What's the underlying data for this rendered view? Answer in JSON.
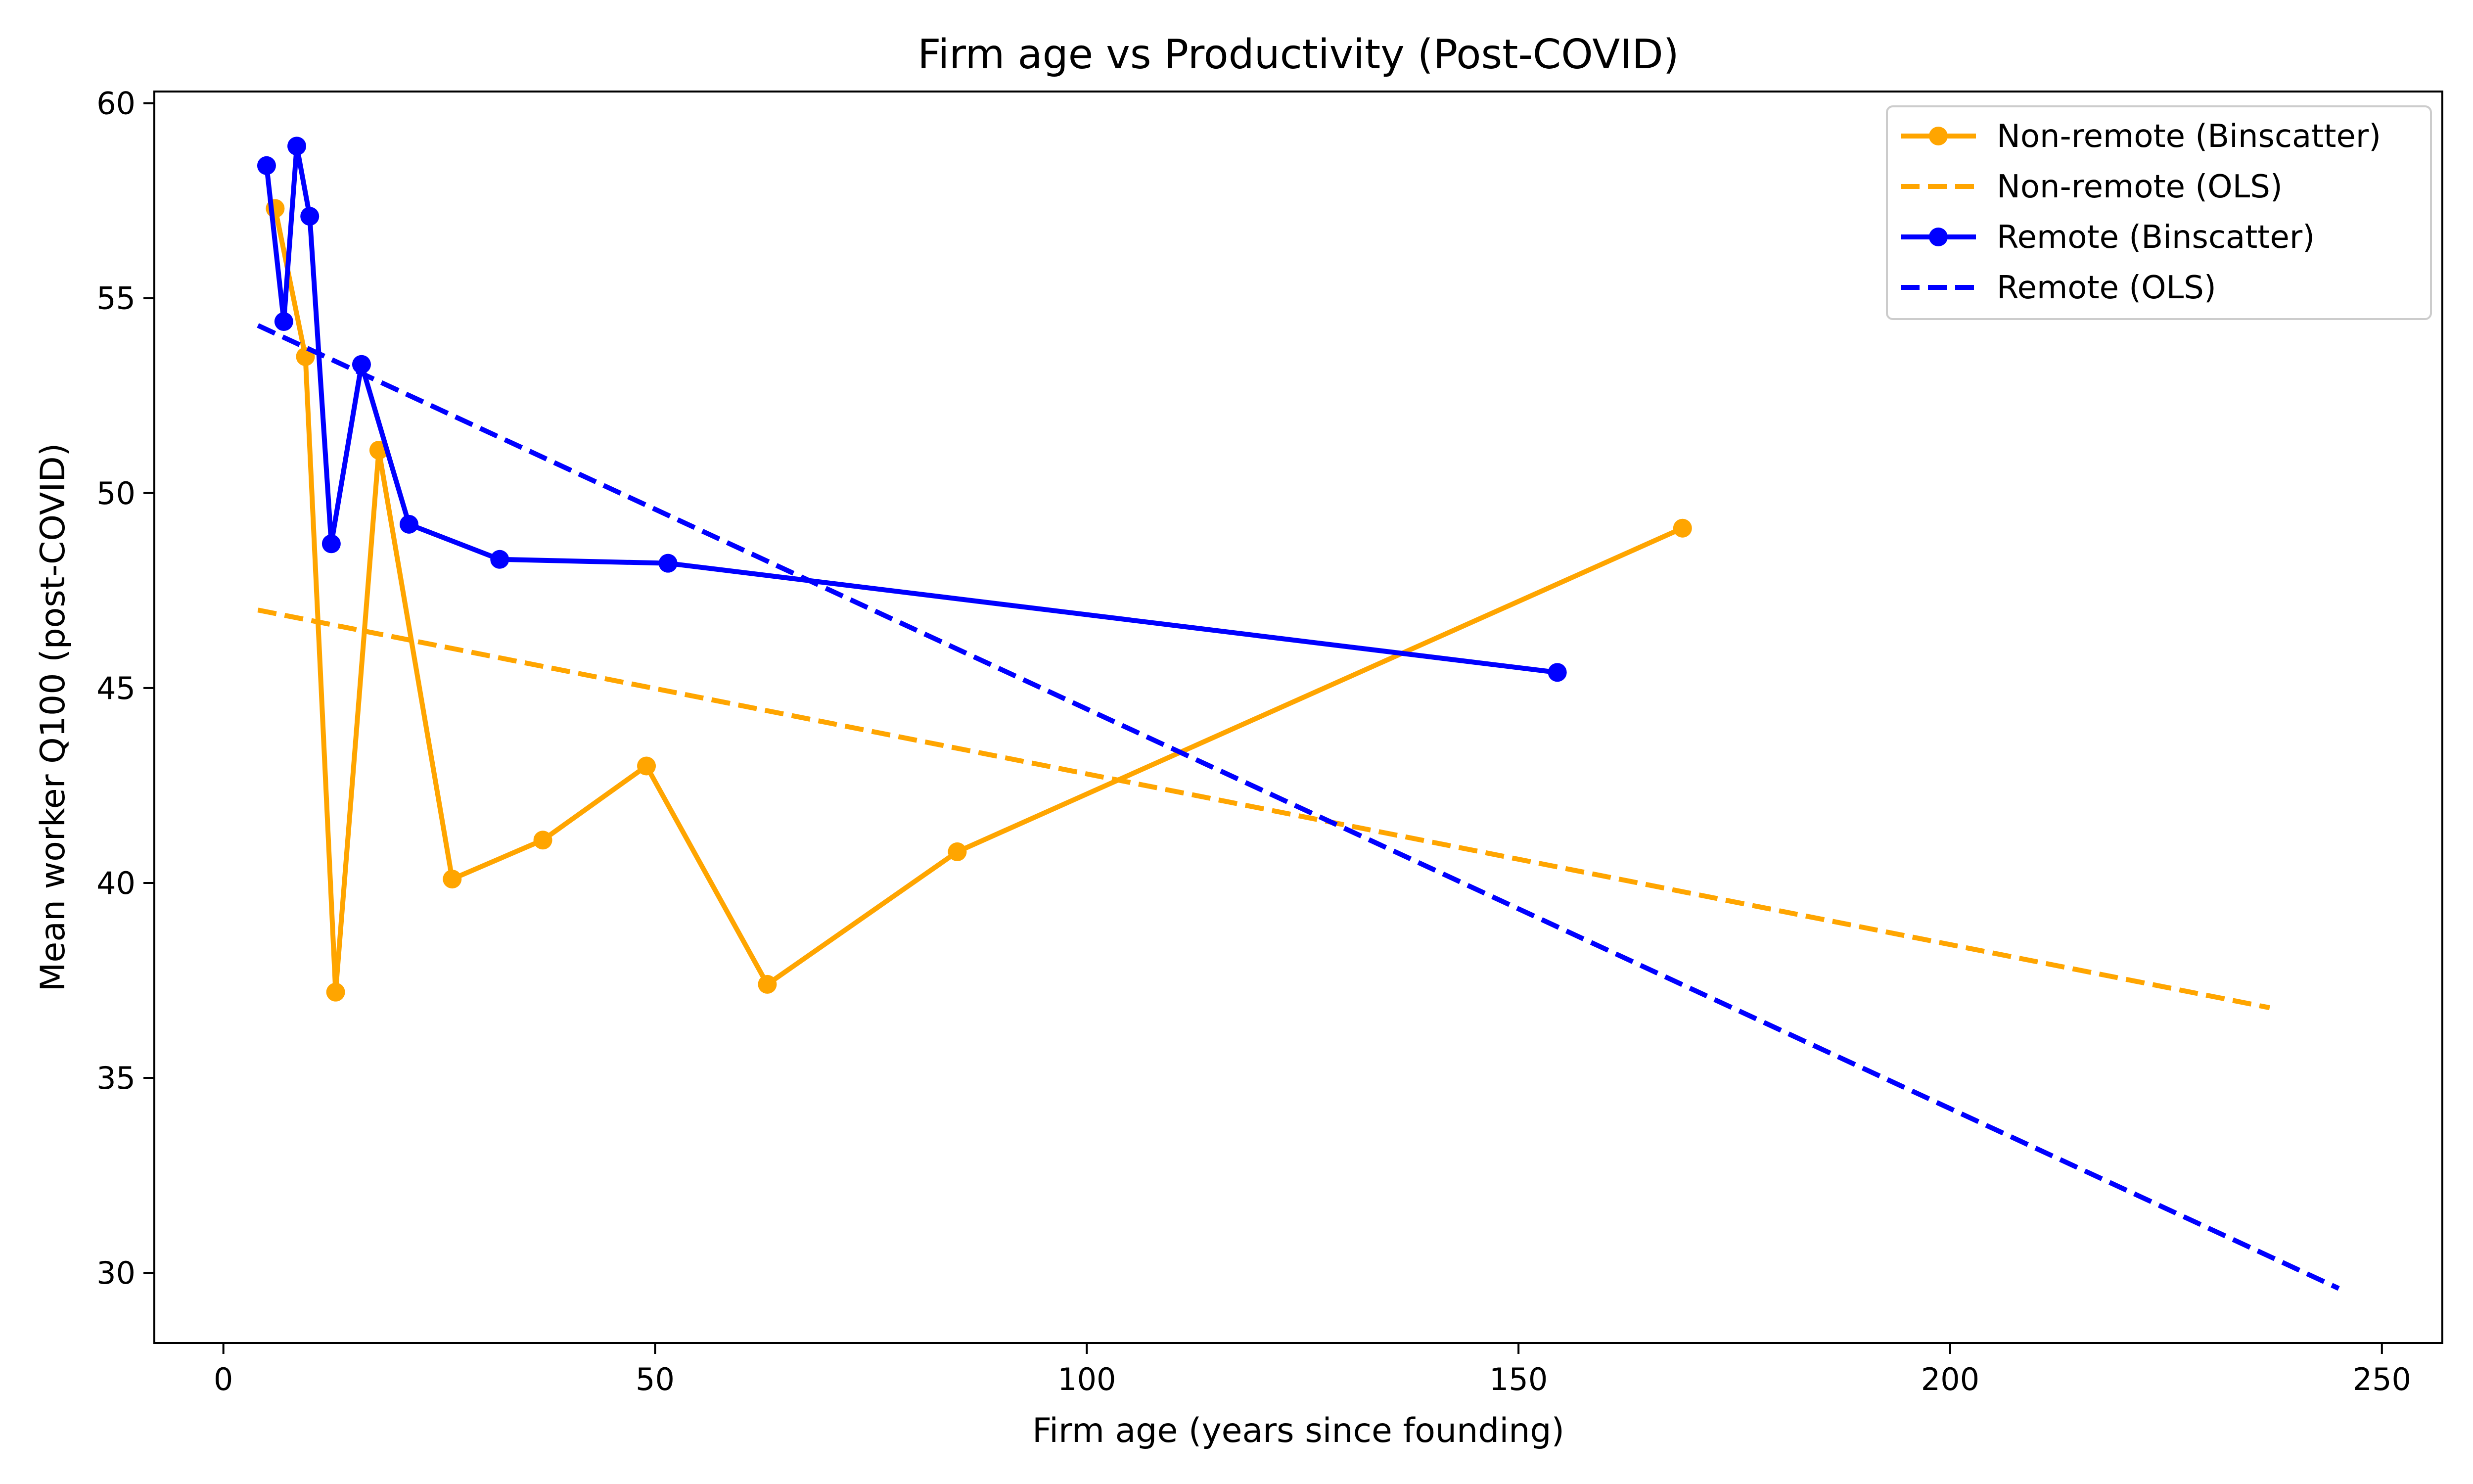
{
  "chart_data": {
    "type": "line",
    "title": "Firm age vs Productivity (Post-COVID)",
    "xlabel": "Firm age (years since founding)",
    "ylabel": "Mean worker Q100 (post-COVID)",
    "xlim": [
      -8,
      257
    ],
    "ylim": [
      28.2,
      60.3
    ],
    "xticks": [
      0,
      50,
      100,
      150,
      200,
      250
    ],
    "yticks": [
      30,
      35,
      40,
      45,
      50,
      55,
      60
    ],
    "grid": false,
    "legend_position": "top-right",
    "series": [
      {
        "name": "Non-remote (Binscatter)",
        "style": "solid-markers",
        "color": "#ffa500",
        "x": [
          6.0,
          9.5,
          13.0,
          18.0,
          26.5,
          37.0,
          49.0,
          63.0,
          85.0,
          169.0
        ],
        "y": [
          57.3,
          53.5,
          37.2,
          51.1,
          40.1,
          41.1,
          43.0,
          37.4,
          40.8,
          49.1
        ]
      },
      {
        "name": "Non-remote (OLS)",
        "style": "dashed",
        "color": "#ffa500",
        "x": [
          4.0,
          237.0
        ],
        "y": [
          47.0,
          36.8
        ]
      },
      {
        "name": "Remote (Binscatter)",
        "style": "solid-markers",
        "color": "#0000ff",
        "x": [
          5.0,
          7.0,
          8.5,
          10.0,
          12.5,
          16.0,
          21.5,
          32.0,
          51.5,
          154.5
        ],
        "y": [
          58.4,
          54.4,
          58.9,
          57.1,
          48.7,
          53.3,
          49.2,
          48.3,
          48.2,
          45.4
        ]
      },
      {
        "name": "Remote (OLS)",
        "style": "dashed",
        "color": "#0000ff",
        "x": [
          4.0,
          245.0
        ],
        "y": [
          54.3,
          29.6
        ]
      }
    ]
  }
}
